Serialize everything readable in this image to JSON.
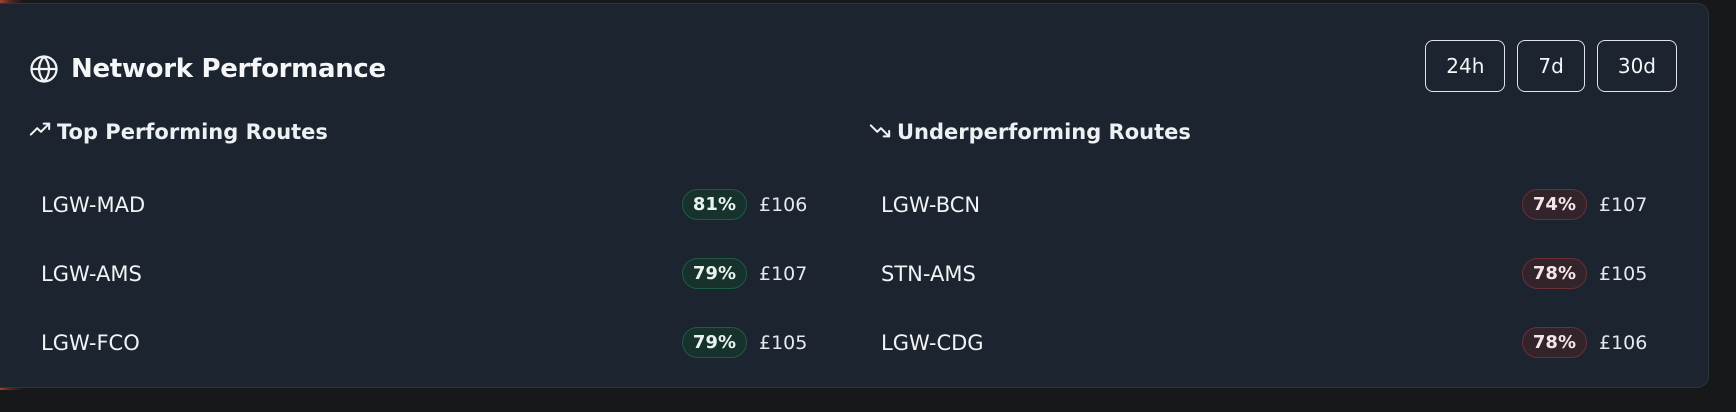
{
  "title": "Network Performance",
  "icons": {
    "header": "globe-icon",
    "top": "trending-up-icon",
    "under": "trending-down-icon"
  },
  "colors": {
    "panel": "#1c2430",
    "good_badge_bg": "#17312c",
    "good_badge_border": "#1f5a45",
    "bad_badge_bg": "#33232a",
    "bad_badge_border": "#6b2f38"
  },
  "ranges": [
    {
      "label": "24h"
    },
    {
      "label": "7d"
    },
    {
      "label": "30d"
    }
  ],
  "top": {
    "title": "Top Performing Routes",
    "rows": [
      {
        "route": "LGW-MAD",
        "pct": "81%",
        "price": "£106"
      },
      {
        "route": "LGW-AMS",
        "pct": "79%",
        "price": "£107"
      },
      {
        "route": "LGW-FCO",
        "pct": "79%",
        "price": "£105"
      }
    ]
  },
  "under": {
    "title": "Underperforming Routes",
    "rows": [
      {
        "route": "LGW-BCN",
        "pct": "74%",
        "price": "£107"
      },
      {
        "route": "STN-AMS",
        "pct": "78%",
        "price": "£105"
      },
      {
        "route": "LGW-CDG",
        "pct": "78%",
        "price": "£106"
      }
    ]
  }
}
